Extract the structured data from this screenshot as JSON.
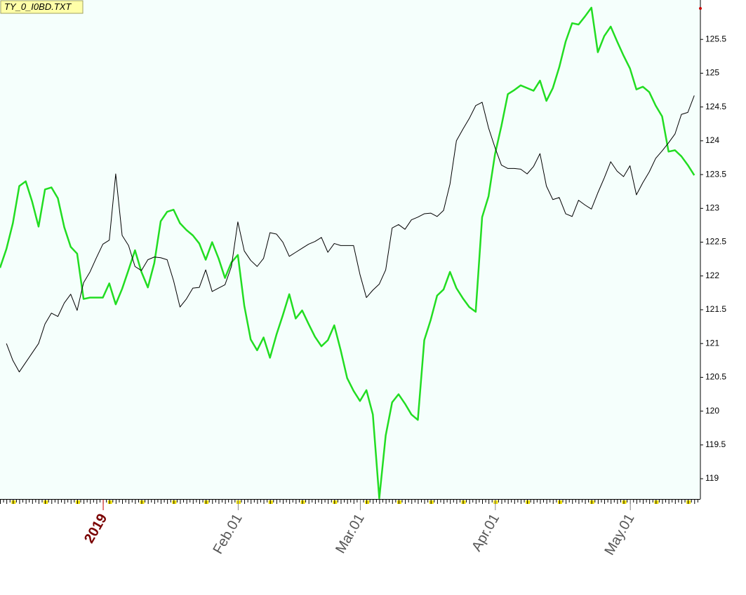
{
  "chart_data": {
    "type": "line",
    "title": "TY_0_I0BD.TXT",
    "categories": [
      null,
      null,
      null,
      null,
      null,
      null,
      null,
      null,
      null,
      null,
      null,
      null,
      null,
      null,
      null,
      null,
      "2019",
      null,
      null,
      null,
      null,
      null,
      null,
      null,
      null,
      null,
      null,
      null,
      null,
      null,
      null,
      null,
      null,
      null,
      null,
      null,
      null,
      "Feb.01",
      null,
      null,
      null,
      null,
      null,
      null,
      null,
      null,
      null,
      null,
      null,
      null,
      null,
      null,
      null,
      null,
      null,
      null,
      "Mar.01",
      null,
      null,
      null,
      null,
      null,
      null,
      null,
      null,
      null,
      null,
      null,
      null,
      null,
      null,
      null,
      null,
      null,
      null,
      null,
      null,
      "Apr.01",
      null,
      null,
      null,
      null,
      null,
      null,
      null,
      null,
      null,
      null,
      null,
      null,
      null,
      null,
      null,
      null,
      null,
      null,
      null,
      null,
      "May.01",
      null,
      null,
      null,
      null,
      null,
      null,
      null,
      null,
      null,
      null
    ],
    "series": [
      {
        "color": "#000000",
        "values": [
          null,
          121.0,
          120.75,
          120.58,
          120.72,
          120.86,
          121.0,
          121.29,
          121.45,
          121.4,
          121.6,
          121.73,
          121.49,
          121.9,
          122.06,
          122.27,
          122.47,
          122.53,
          123.51,
          122.6,
          122.45,
          122.14,
          122.08,
          122.24,
          122.28,
          122.27,
          122.24,
          121.93,
          121.54,
          121.66,
          121.82,
          121.83,
          122.09,
          121.77,
          121.82,
          121.87,
          122.14,
          122.8,
          122.37,
          122.23,
          122.14,
          122.26,
          122.64,
          122.62,
          122.5,
          122.29,
          122.35,
          122.41,
          122.47,
          122.51,
          122.57,
          122.35,
          122.48,
          122.45,
          122.45,
          122.45,
          122.02,
          121.68,
          121.79,
          121.88,
          122.09,
          122.71,
          122.76,
          122.69,
          122.83,
          122.87,
          122.92,
          122.93,
          122.88,
          122.97,
          123.36,
          124.0,
          124.17,
          124.33,
          124.52,
          124.57,
          124.19,
          123.9,
          123.64,
          123.59,
          123.59,
          123.58,
          123.51,
          123.62,
          123.81,
          123.33,
          123.13,
          123.16,
          122.92,
          122.88,
          123.12,
          123.05,
          122.99,
          123.23,
          123.45,
          123.69,
          123.55,
          123.47,
          123.63,
          123.2,
          123.38,
          123.54,
          123.74,
          123.85,
          123.97,
          124.1,
          124.39,
          124.42,
          124.67
        ]
      },
      {
        "color": "#22dd22",
        "values": [
          122.12,
          122.4,
          122.78,
          123.33,
          123.4,
          123.1,
          122.73,
          123.28,
          123.31,
          123.15,
          122.72,
          122.43,
          122.33,
          121.66,
          121.68,
          121.68,
          121.68,
          121.89,
          121.58,
          121.81,
          122.09,
          122.38,
          122.06,
          121.83,
          122.19,
          122.81,
          122.95,
          122.98,
          122.78,
          122.68,
          122.6,
          122.48,
          122.24,
          122.5,
          122.26,
          121.97,
          122.2,
          122.31,
          121.56,
          121.06,
          120.9,
          121.09,
          120.79,
          121.13,
          121.42,
          121.73,
          121.37,
          121.49,
          121.29,
          121.1,
          120.96,
          121.05,
          121.27,
          120.9,
          120.49,
          120.3,
          120.15,
          120.31,
          119.95,
          118.71,
          119.64,
          120.13,
          120.25,
          120.11,
          119.95,
          119.87,
          121.05,
          121.35,
          121.71,
          121.8,
          122.06,
          121.82,
          121.67,
          121.54,
          121.47,
          122.87,
          123.18,
          123.8,
          124.22,
          124.69,
          124.75,
          124.82,
          124.78,
          124.74,
          124.89,
          124.59,
          124.78,
          125.09,
          125.47,
          125.74,
          125.72,
          125.84,
          125.97,
          125.31,
          125.55,
          125.69,
          125.47,
          125.26,
          125.07,
          124.76,
          124.8,
          124.72,
          124.52,
          124.36,
          123.84,
          123.86,
          123.77,
          123.64,
          123.49
        ]
      }
    ],
    "ylim": [
      118.7,
      126.0
    ],
    "yticks": [
      119,
      119.5,
      120,
      120.5,
      121,
      121.5,
      122,
      122.5,
      123,
      123.5,
      124,
      124.5,
      125,
      125.5
    ],
    "grid": false
  }
}
